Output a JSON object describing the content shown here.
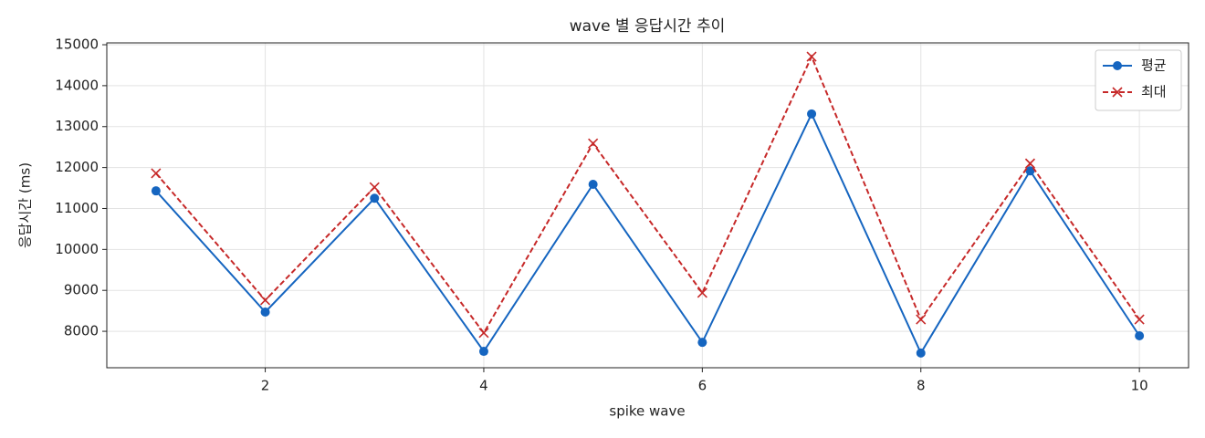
{
  "chart_data": {
    "type": "line",
    "title": "wave 별 응답시간 추이",
    "xlabel": "spike wave",
    "ylabel": "응답시간 (ms)",
    "x": [
      1,
      2,
      3,
      4,
      5,
      6,
      7,
      8,
      9,
      10
    ],
    "series": [
      {
        "name": "평균",
        "color": "#1565c0",
        "marker": "o",
        "linestyle": "solid",
        "values": [
          11430,
          8470,
          11250,
          7510,
          11590,
          7730,
          13310,
          7470,
          11920,
          7890
        ]
      },
      {
        "name": "최대",
        "color": "#c62828",
        "marker": "x",
        "linestyle": "dashed",
        "values": [
          11860,
          8760,
          11520,
          7960,
          12590,
          8940,
          14710,
          8290,
          12100,
          8290
        ]
      }
    ],
    "xlim": [
      0.55,
      10.45
    ],
    "xticks": [
      2,
      4,
      6,
      8,
      10
    ],
    "ylim": [
      7110,
      15045
    ],
    "yticks": [
      8000,
      9000,
      10000,
      11000,
      12000,
      13000,
      14000,
      15000
    ],
    "grid": true,
    "legend": "upper right"
  }
}
